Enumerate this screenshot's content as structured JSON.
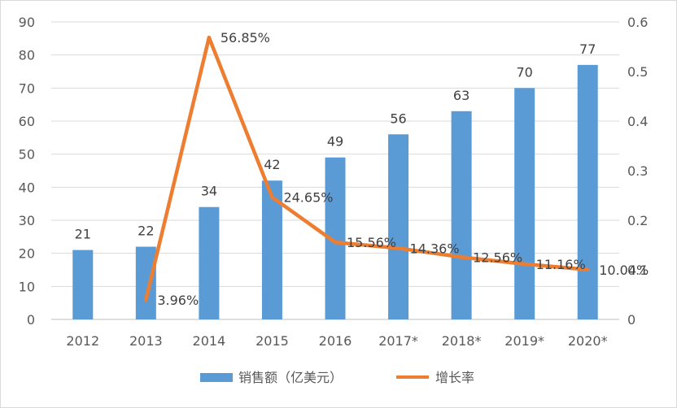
{
  "chart_data": {
    "type": "bar",
    "title": "",
    "categories": [
      "2012",
      "2013",
      "2014",
      "2015",
      "2016",
      "2017*",
      "2018*",
      "2019*",
      "2020*"
    ],
    "series": [
      {
        "name": "销售额（亿美元）",
        "type": "bar",
        "axis": "left",
        "color": "#5b9bd5",
        "values": [
          21,
          22,
          34,
          42,
          49,
          56,
          63,
          70,
          77
        ],
        "labels": [
          "21",
          "22",
          "34",
          "42",
          "49",
          "56",
          "63",
          "70",
          "77"
        ]
      },
      {
        "name": "增长率",
        "type": "line",
        "axis": "right",
        "color": "#ed7d31",
        "values": [
          null,
          0.0396,
          0.5685,
          0.2465,
          0.1556,
          0.1436,
          0.1256,
          0.1116,
          0.1004
        ],
        "labels": [
          "",
          "3.96%",
          "56.85%",
          "24.65%",
          "15.56%",
          "14.36%",
          "12.56%",
          "11.16%",
          "10.04%"
        ]
      }
    ],
    "y_left": {
      "min": 0,
      "max": 90,
      "step": 10,
      "ticks": [
        "0",
        "10",
        "20",
        "30",
        "40",
        "50",
        "60",
        "70",
        "80",
        "90"
      ]
    },
    "y_right": {
      "min": 0,
      "max": 0.6,
      "step": 0.1,
      "ticks": [
        "0",
        "0.1",
        "0.2",
        "0.3",
        "0.4",
        "0.5",
        "0.6"
      ]
    },
    "grid": true,
    "legend": "bottom"
  }
}
